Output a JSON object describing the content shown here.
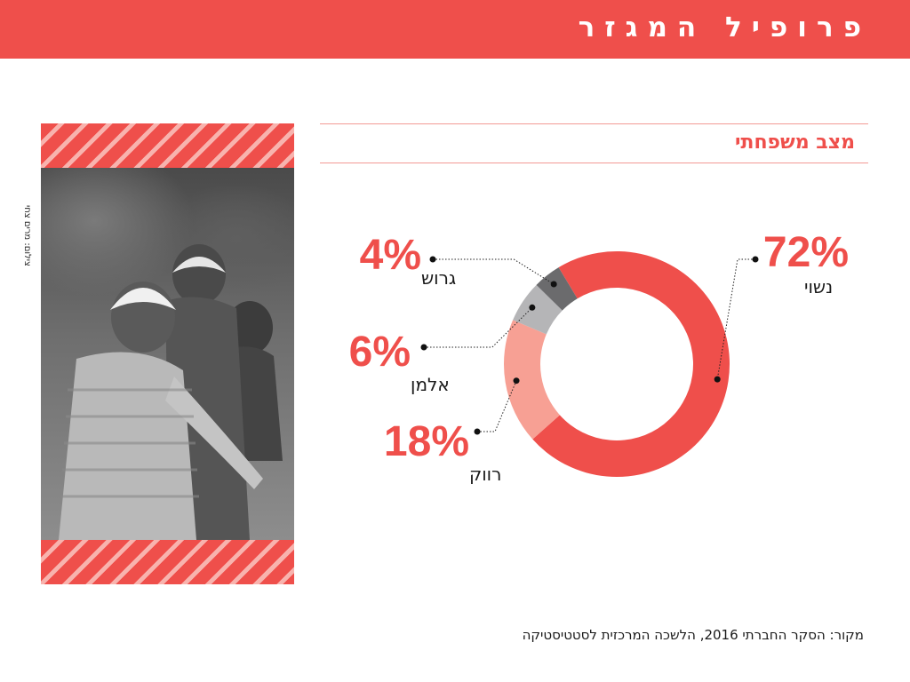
{
  "header": {
    "title": "פרופיל המגזר"
  },
  "photo": {
    "credit": "צילום: מרים צחי"
  },
  "section": {
    "title": "מצב משפחתי"
  },
  "chart_data": {
    "type": "pie",
    "donut": true,
    "title": "מצב משפחתי",
    "categories": [
      "נשוי",
      "רווק",
      "אלמן",
      "גרוש"
    ],
    "values": [
      72,
      18,
      6,
      4
    ],
    "value_labels": [
      "72%",
      "18%",
      "6%",
      "4%"
    ],
    "colors": [
      "#ef4f4b",
      "#f7a094",
      "#b5b5b7",
      "#6b6b6d"
    ],
    "legend": "none"
  },
  "source": {
    "text": "מקור: הסקר החברתי 2016, הלשכה המרכזית לסטטיסטיקה"
  }
}
